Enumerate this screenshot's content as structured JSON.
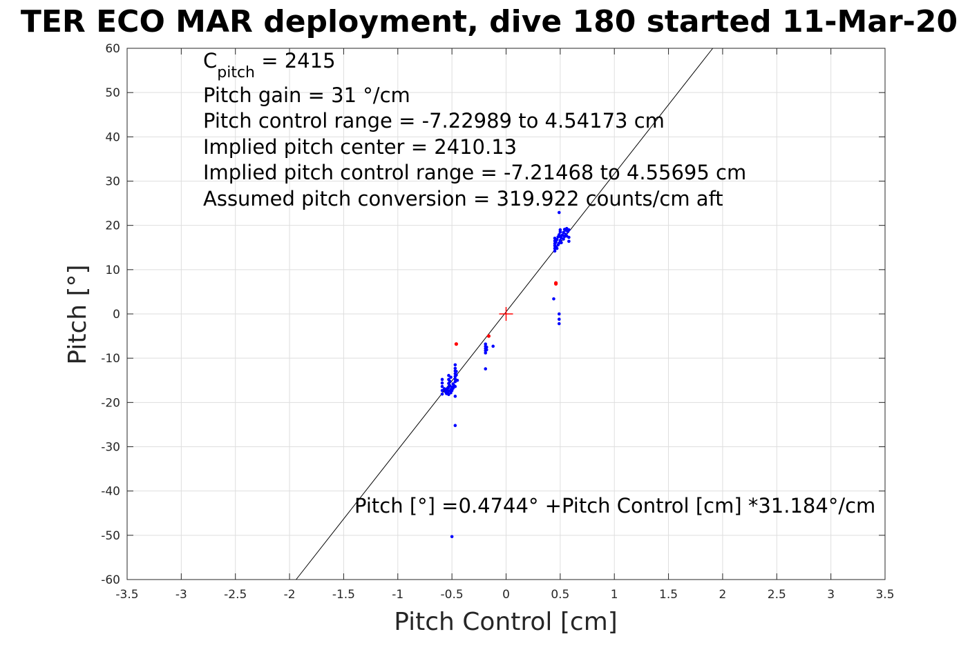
{
  "chart_data": {
    "type": "scatter",
    "title": "TER ECO MAR deployment, dive 180 started 11-Mar-20",
    "xlabel": "Pitch Control [cm]",
    "ylabel": "Pitch [°]",
    "xlim": [
      -3.5,
      3.5
    ],
    "ylim": [
      -60,
      60
    ],
    "xticks": [
      -3.5,
      -3,
      -2.5,
      -2,
      -1.5,
      -1,
      -0.5,
      0,
      0.5,
      1,
      1.5,
      2,
      2.5,
      3,
      3.5
    ],
    "yticks": [
      -60,
      -50,
      -40,
      -30,
      -20,
      -10,
      0,
      10,
      20,
      30,
      40,
      50,
      60
    ],
    "xtick_labels": [
      "-3.5",
      "-3",
      "-2.5",
      "-2",
      "-1.5",
      "-1",
      "-0.5",
      "0",
      "0.5",
      "1",
      "1.5",
      "2",
      "2.5",
      "3",
      "3.5"
    ],
    "ytick_labels": [
      "-60",
      "-50",
      "-40",
      "-30",
      "-20",
      "-10",
      "0",
      "10",
      "20",
      "30",
      "40",
      "50",
      "60"
    ],
    "grid": true,
    "annotations": {
      "c_pitch_symbol": "C",
      "c_pitch_subscript": "pitch",
      "c_pitch_value": " = 2415",
      "lines": [
        "Pitch gain = 31 °/cm",
        "Pitch control range = -7.22989 to 4.54173 cm",
        "Implied pitch center = 2410.13",
        "Implied pitch control range = -7.21468 to 4.55695 cm",
        "Assumed pitch conversion = 319.922 counts/cm aft"
      ],
      "fit_equation": "Pitch [°] =0.4744° +Pitch Control [cm] *31.184°/cm"
    },
    "fit_line": {
      "intercept": 0.4744,
      "slope": 31.184,
      "color": "#000000"
    },
    "center_marker": {
      "x": 0,
      "y": 0,
      "color": "#ff0000"
    },
    "series": [
      {
        "color": "#0000ff",
        "points": [
          [
            -0.59,
            -14.8
          ],
          [
            -0.59,
            -15.6
          ],
          [
            -0.59,
            -16.4
          ],
          [
            -0.59,
            -17.3
          ],
          [
            -0.59,
            -18.1
          ],
          [
            -0.57,
            -16.9
          ],
          [
            -0.56,
            -17.6
          ],
          [
            -0.55,
            -17.2
          ],
          [
            -0.55,
            -18.0
          ],
          [
            -0.54,
            -16.8
          ],
          [
            -0.54,
            -17.9
          ],
          [
            -0.53,
            -13.9
          ],
          [
            -0.53,
            -14.8
          ],
          [
            -0.53,
            -15.7
          ],
          [
            -0.53,
            -16.6
          ],
          [
            -0.53,
            -17.4
          ],
          [
            -0.53,
            -18.2
          ],
          [
            -0.52,
            -15.2
          ],
          [
            -0.52,
            -16.2
          ],
          [
            -0.51,
            -17.1
          ],
          [
            -0.51,
            -17.8
          ],
          [
            -0.51,
            -14.3
          ],
          [
            -0.5,
            -16.5
          ],
          [
            -0.5,
            -17.3
          ],
          [
            -0.49,
            -15.8
          ],
          [
            -0.49,
            -16.8
          ],
          [
            -0.48,
            -16.2
          ],
          [
            -0.47,
            -11.5
          ],
          [
            -0.47,
            -12.3
          ],
          [
            -0.47,
            -12.9
          ],
          [
            -0.47,
            -13.5
          ],
          [
            -0.47,
            -14.1
          ],
          [
            -0.47,
            -14.7
          ],
          [
            -0.47,
            -15.3
          ],
          [
            -0.47,
            -16.4
          ],
          [
            -0.47,
            -18.6
          ],
          [
            -0.46,
            -13.0
          ],
          [
            -0.46,
            -13.8
          ],
          [
            -0.45,
            -15.0
          ],
          [
            -0.47,
            -25.2
          ],
          [
            -0.5,
            -50.3
          ],
          [
            -0.19,
            -6.8
          ],
          [
            -0.19,
            -7.3
          ],
          [
            -0.19,
            -7.8
          ],
          [
            -0.19,
            -8.3
          ],
          [
            -0.19,
            -8.8
          ],
          [
            -0.18,
            -7.5
          ],
          [
            -0.18,
            -8.1
          ],
          [
            -0.19,
            -12.4
          ],
          [
            -0.12,
            -7.3
          ],
          [
            0.45,
            14.2
          ],
          [
            0.45,
            14.8
          ],
          [
            0.45,
            15.4
          ],
          [
            0.45,
            15.9
          ],
          [
            0.45,
            16.5
          ],
          [
            0.45,
            17.1
          ],
          [
            0.46,
            15.1
          ],
          [
            0.46,
            16.2
          ],
          [
            0.47,
            14.8
          ],
          [
            0.47,
            16.8
          ],
          [
            0.48,
            15.6
          ],
          [
            0.48,
            17.4
          ],
          [
            0.49,
            16.0
          ],
          [
            0.49,
            17.9
          ],
          [
            0.5,
            16.6
          ],
          [
            0.5,
            17.5
          ],
          [
            0.5,
            18.5
          ],
          [
            0.5,
            19.0
          ],
          [
            0.51,
            16.1
          ],
          [
            0.51,
            17.2
          ],
          [
            0.52,
            17.8
          ],
          [
            0.53,
            16.9
          ],
          [
            0.53,
            18.4
          ],
          [
            0.54,
            17.5
          ],
          [
            0.54,
            19.1
          ],
          [
            0.55,
            18.0
          ],
          [
            0.55,
            18.9
          ],
          [
            0.56,
            17.6
          ],
          [
            0.56,
            19.3
          ],
          [
            0.57,
            18.6
          ],
          [
            0.58,
            16.4
          ],
          [
            0.58,
            17.3
          ],
          [
            0.58,
            19.0
          ],
          [
            0.49,
            22.9
          ],
          [
            0.44,
            3.4
          ],
          [
            0.49,
            0.0
          ],
          [
            0.49,
            -1.2
          ],
          [
            0.49,
            -2.2
          ]
        ]
      },
      {
        "color": "#ff0000",
        "points": [
          [
            -0.46,
            -6.8
          ],
          [
            -0.16,
            -5.0
          ],
          [
            0.46,
            6.8
          ],
          [
            0.46,
            7.0
          ]
        ]
      }
    ]
  }
}
